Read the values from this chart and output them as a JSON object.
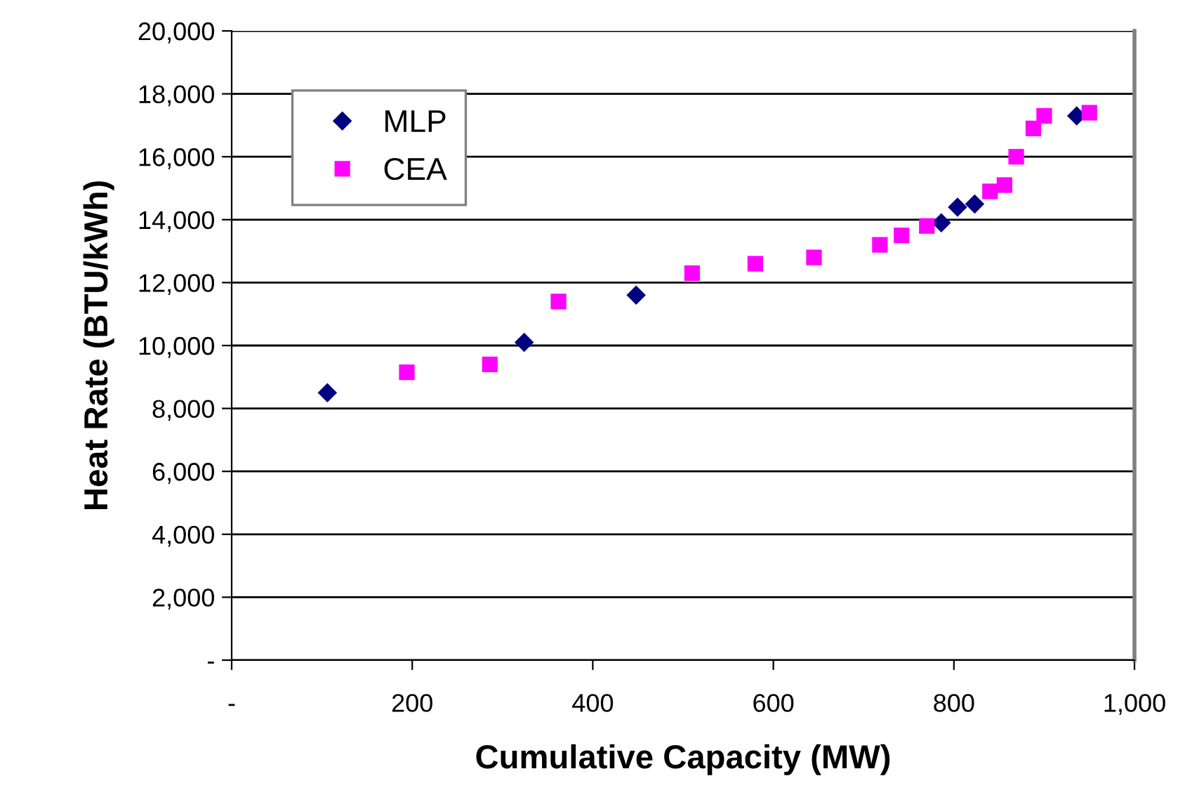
{
  "chart_data": {
    "type": "scatter",
    "xlabel": "Cumulative Capacity (MW)",
    "ylabel": "Heat Rate (BTU/kWh)",
    "xlim": [
      0,
      1000
    ],
    "xticks": [
      {
        "value": 0,
        "label": "-"
      },
      200,
      400,
      600,
      {
        "value": 800,
        "label": "800"
      },
      {
        "value": 1000,
        "label": "1,000"
      }
    ],
    "ylim": [
      0,
      20000
    ],
    "yticks": [
      {
        "value": 0,
        "label": "-"
      },
      {
        "value": 2000,
        "label": "2,000"
      },
      {
        "value": 4000,
        "label": "4,000"
      },
      {
        "value": 6000,
        "label": "6,000"
      },
      {
        "value": 8000,
        "label": "8,000"
      },
      {
        "value": 10000,
        "label": "10,000"
      },
      {
        "value": 12000,
        "label": "12,000"
      },
      {
        "value": 14000,
        "label": "14,000"
      },
      {
        "value": 16000,
        "label": "16,000"
      },
      {
        "value": 18000,
        "label": "18,000"
      },
      {
        "value": 20000,
        "label": "20,000"
      }
    ],
    "grid": "y",
    "legend": "top left",
    "series": [
      {
        "name": "MLP",
        "color": "#000080",
        "marker": "diamond",
        "x": [
          106,
          324,
          448,
          786,
          804,
          823,
          936
        ],
        "values": [
          8500,
          10100,
          11600,
          13900,
          14400,
          14500,
          17300
        ]
      },
      {
        "name": "CEA",
        "color": "#ff00ff",
        "marker": "square",
        "x": [
          194,
          286,
          362,
          510,
          580,
          645,
          718,
          742,
          770,
          840,
          856,
          869,
          888,
          900,
          950
        ],
        "values": [
          9150,
          9400,
          11400,
          12300,
          12600,
          12800,
          13200,
          13500,
          13800,
          14900,
          15100,
          16000,
          16900,
          17300,
          17400
        ]
      }
    ]
  }
}
